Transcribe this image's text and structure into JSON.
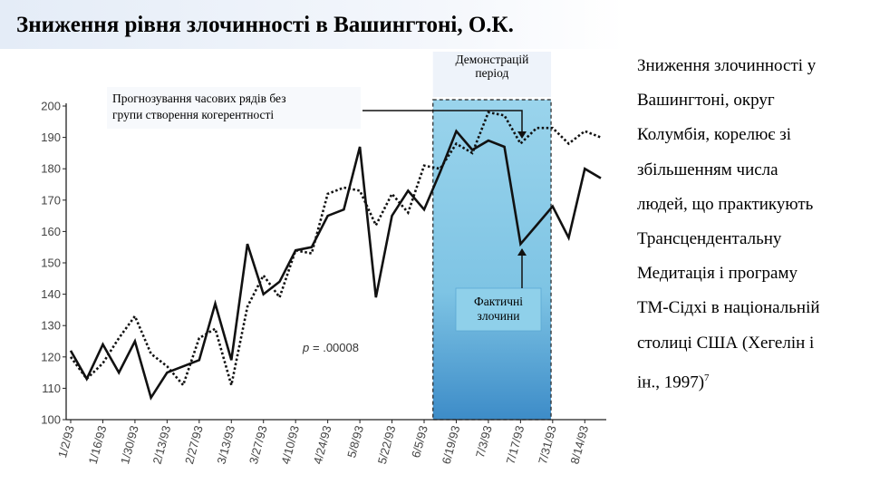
{
  "title": "Зниження рівня злочинності в Вашингтоні, О.К.",
  "side_text": {
    "lines": [
      "Зниження злочинності у",
      "Вашингтоні, округ",
      "Колумбія, корелює зі",
      "збільшенням числа",
      "людей, що практикують",
      "Трансцендентальну",
      "Медитація і програму",
      "ТМ-Сідхі в національній",
      "столиці США (Хегелін і",
      "ін., 1997)"
    ],
    "footnote": "7"
  },
  "chart_data": {
    "type": "line",
    "categories": [
      "1/2/93",
      null,
      "1/16/93",
      null,
      "1/30/93",
      null,
      "2/13/93",
      null,
      "2/27/93",
      null,
      "3/13/93",
      null,
      "3/27/93",
      null,
      "4/10/93",
      null,
      "4/24/93",
      null,
      "5/8/93",
      null,
      "5/22/93",
      null,
      "6/5/93",
      null,
      "6/19/93",
      null,
      "7/3/93",
      null,
      "7/17/93",
      null,
      "7/31/93",
      null,
      "8/14/93",
      null
    ],
    "series": [
      {
        "color": "#111111",
        "style": "solid",
        "values": [
          122,
          113,
          124,
          115,
          125,
          107,
          115,
          117,
          119,
          137,
          119,
          156,
          140,
          144,
          154,
          155,
          165,
          167,
          187,
          139,
          165,
          173,
          167,
          179,
          192,
          186,
          189,
          187,
          156,
          162,
          168,
          158,
          180,
          177
        ]
      },
      {
        "color": "#111111",
        "style": "dotted",
        "values": [
          120,
          113,
          118,
          126,
          133,
          121,
          117,
          111,
          126,
          129,
          111,
          136,
          146,
          139,
          154,
          153,
          172,
          174,
          173,
          162,
          172,
          166,
          181,
          180,
          188,
          185,
          198,
          197,
          188,
          193,
          193,
          188,
          192,
          190
        ]
      }
    ],
    "ylim": [
      100,
      200
    ],
    "yticks": [
      100,
      110,
      120,
      130,
      140,
      150,
      160,
      170,
      180,
      190,
      200
    ],
    "period_label": [
      "Демонстрацій",
      "період"
    ],
    "forecast_label": [
      "Прогнозування часових рядів без",
      "групи створення когерентності"
    ],
    "actual_label": [
      "Фактичні",
      "злочини"
    ],
    "p_label": {
      "symbol": "p",
      "text": "= .00008"
    }
  }
}
